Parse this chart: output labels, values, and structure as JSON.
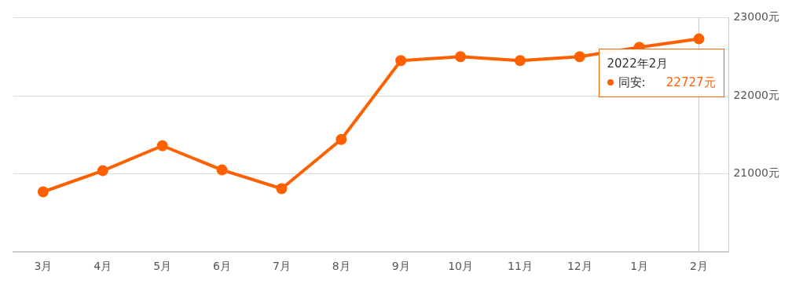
{
  "chart_data": {
    "type": "line",
    "categories": [
      "3月",
      "4月",
      "5月",
      "6月",
      "7月",
      "8月",
      "9月",
      "10月",
      "11月",
      "12月",
      "1月",
      "2月"
    ],
    "series": [
      {
        "name": "同安:",
        "color": "#ff6000",
        "values": [
          20770,
          21040,
          21360,
          21050,
          20810,
          21440,
          22450,
          22500,
          22450,
          22500,
          22620,
          22727
        ],
        "value_labels": [
          null,
          null,
          null,
          null,
          null,
          null,
          null,
          null,
          null,
          null,
          null,
          "22727元"
        ]
      }
    ],
    "ylim": [
      20000,
      23000
    ],
    "yticks": [
      {
        "value": 20000,
        "label": null
      },
      {
        "value": 21000,
        "label": "21000元"
      },
      {
        "value": 22000,
        "label": "22000元"
      },
      {
        "value": 23000,
        "label": "23000元"
      }
    ],
    "grid": "y",
    "legend": "top right",
    "marker": "circle",
    "line_style": "solid",
    "ref_lines": [
      {
        "axis": "x",
        "value": "2月",
        "color": "#cccccc"
      }
    ],
    "annotations": [
      {
        "text": "2022年2月",
        "x": "2月",
        "y": 22727
      }
    ]
  }
}
